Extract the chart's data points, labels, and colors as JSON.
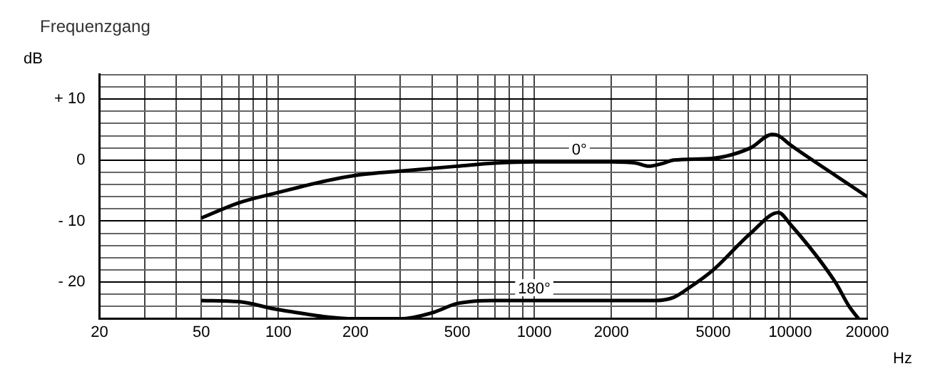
{
  "chart_data": {
    "type": "line",
    "title": "Frequenzgang",
    "xlabel": "Hz",
    "ylabel": "dB",
    "log": "x",
    "grid": true,
    "legend": false,
    "xlim": [
      20,
      20000
    ],
    "xticks": [
      20,
      {
        "value": 30,
        "label": null
      },
      {
        "value": 40,
        "label": null
      },
      50,
      {
        "value": 60,
        "label": null
      },
      {
        "value": 70,
        "label": null
      },
      {
        "value": 80,
        "label": null
      },
      {
        "value": 90,
        "label": null
      },
      100,
      200,
      {
        "value": 300,
        "label": null
      },
      {
        "value": 400,
        "label": null
      },
      500,
      {
        "value": 600,
        "label": null
      },
      {
        "value": 700,
        "label": null
      },
      {
        "value": 800,
        "label": null
      },
      {
        "value": 900,
        "label": null
      },
      1000,
      2000,
      {
        "value": 3000,
        "label": null
      },
      {
        "value": 4000,
        "label": null
      },
      5000,
      {
        "value": 6000,
        "label": null
      },
      {
        "value": 7000,
        "label": null
      },
      {
        "value": 8000,
        "label": null
      },
      {
        "value": 9000,
        "label": null
      },
      10000,
      20000
    ],
    "ylim": [
      -26,
      14
    ],
    "yticks": [
      {
        "value": -26,
        "label": null
      },
      {
        "value": -24,
        "label": null
      },
      {
        "value": -22,
        "label": null
      },
      {
        "value": -20,
        "label": "- 20"
      },
      {
        "value": -18,
        "label": null
      },
      {
        "value": -16,
        "label": null
      },
      {
        "value": -14,
        "label": null
      },
      {
        "value": -12,
        "label": null
      },
      {
        "value": -10,
        "label": "- 10"
      },
      {
        "value": -8,
        "label": null
      },
      {
        "value": -6,
        "label": null
      },
      {
        "value": -4,
        "label": null
      },
      {
        "value": -2,
        "label": null
      },
      0,
      {
        "value": 2,
        "label": null
      },
      {
        "value": 4,
        "label": null
      },
      {
        "value": 6,
        "label": null
      },
      {
        "value": 8,
        "label": null
      },
      {
        "value": 10,
        "label": "+ 10"
      },
      {
        "value": 12,
        "label": null
      },
      {
        "value": 14,
        "label": null
      }
    ],
    "series": [
      {
        "name": "0°",
        "color": "#000000",
        "x": [
          50,
          70,
          100,
          150,
          200,
          300,
          500,
          700,
          1000,
          1500,
          2000,
          2500,
          2800,
          3200,
          3500,
          5000,
          7000,
          8500,
          9000,
          10000,
          15000,
          20000
        ],
        "values": [
          -9.5,
          -7,
          -5.3,
          -3.5,
          -2.5,
          -1.8,
          -1,
          -0.5,
          -0.3,
          -0.3,
          -0.3,
          -0.5,
          -1,
          -0.5,
          0,
          0.3,
          2,
          4.2,
          4,
          2.5,
          -2.5,
          -6
        ]
      },
      {
        "name": "180°",
        "color": "#000000",
        "x": [
          50,
          70,
          100,
          200,
          300,
          400,
          500,
          700,
          1000,
          1500,
          2000,
          3000,
          3500,
          4000,
          5000,
          7000,
          9000,
          10000,
          15000,
          17000,
          18500
        ],
        "values": [
          -23,
          -23.2,
          -24.5,
          -26,
          -26,
          -25,
          -23.5,
          -23,
          -23,
          -23,
          -23,
          -23,
          -22.5,
          -21,
          -18,
          -12,
          -8.6,
          -10.5,
          -20,
          -24,
          -26
        ]
      }
    ]
  }
}
